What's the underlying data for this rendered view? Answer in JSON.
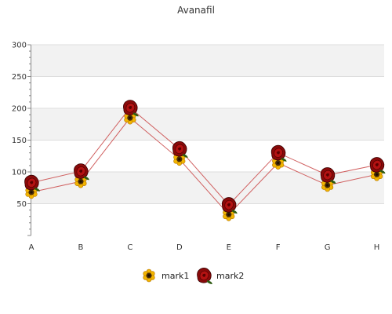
{
  "chart_data": {
    "type": "line",
    "title": "Avanafil",
    "categories": [
      "A",
      "B",
      "C",
      "D",
      "E",
      "F",
      "G",
      "H"
    ],
    "ylim": [
      0,
      300
    ],
    "yticks": [
      50,
      100,
      150,
      200,
      250,
      300
    ],
    "grid": true,
    "legend_position": "bottom",
    "series": [
      {
        "name": "mark1",
        "values": [
          68,
          85,
          185,
          120,
          33,
          114,
          79,
          96
        ],
        "color": "#d06060",
        "marker": "sunflower-icon"
      },
      {
        "name": "mark2",
        "values": [
          83,
          101,
          201,
          136,
          48,
          130,
          95,
          111
        ],
        "color": "#d06060",
        "marker": "rose-icon"
      }
    ]
  }
}
